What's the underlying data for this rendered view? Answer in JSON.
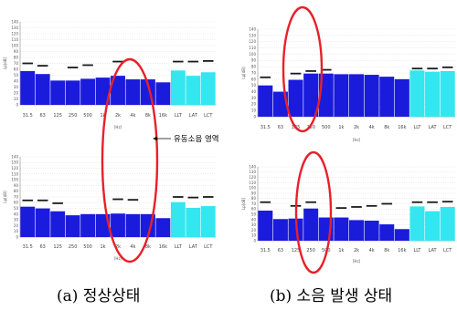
{
  "chart_data": [
    {
      "type": "bar",
      "panel": "a-top",
      "categories": [
        "31.5",
        "63",
        "125",
        "250",
        "500",
        "1k",
        "2k",
        "4k",
        "8k",
        "16k",
        "LLT",
        "LAT",
        "LCT"
      ],
      "values": [
        57,
        52,
        41,
        41,
        44,
        46,
        49,
        43,
        43,
        38,
        58,
        49,
        55
      ],
      "limits": [
        70,
        66,
        0,
        63,
        67,
        0,
        73,
        0,
        0,
        0,
        73,
        73,
        74
      ],
      "colors": [
        "#1b1bdc",
        "#1b1bdc",
        "#1b1bdc",
        "#1b1bdc",
        "#1b1bdc",
        "#1b1bdc",
        "#1b1bdc",
        "#1b1bdc",
        "#1b1bdc",
        "#1b1bdc",
        "#33e6f0",
        "#33e6f0",
        "#33e6f0"
      ],
      "yticks": [
        "140",
        "130",
        "120",
        "110",
        "100",
        "90",
        "80",
        "70",
        "60",
        "50",
        "40",
        "30",
        "20",
        "10",
        "0"
      ],
      "ylabel": "Lp[dB]",
      "xlabel": "[Hz]",
      "ylim": [
        0,
        140
      ],
      "grid": true
    },
    {
      "type": "bar",
      "panel": "a-bottom",
      "categories": [
        "31.5",
        "63",
        "125",
        "250",
        "500",
        "1k",
        "2k",
        "4k",
        "8k",
        "16k",
        "LLT",
        "LAT",
        "LCT"
      ],
      "values": [
        53,
        50,
        45,
        38,
        40,
        40,
        41,
        40,
        40,
        33,
        61,
        51,
        54
      ],
      "limits": [
        64,
        64,
        59,
        0,
        0,
        0,
        66,
        65,
        0,
        0,
        70,
        69,
        70
      ],
      "colors": [
        "#1b1bdc",
        "#1b1bdc",
        "#1b1bdc",
        "#1b1bdc",
        "#1b1bdc",
        "#1b1bdc",
        "#1b1bdc",
        "#1b1bdc",
        "#1b1bdc",
        "#1b1bdc",
        "#33e6f0",
        "#33e6f0",
        "#33e6f0"
      ],
      "yticks": [
        "140",
        "130",
        "120",
        "110",
        "100",
        "90",
        "80",
        "70",
        "60",
        "50",
        "40",
        "30",
        "20",
        "10",
        "0"
      ],
      "ylabel": "Lp[dB]",
      "xlabel": "[Hz]",
      "ylim": [
        0,
        140
      ],
      "grid": true
    },
    {
      "type": "bar",
      "panel": "b-top",
      "categories": [
        "31.5",
        "63",
        "125",
        "250",
        "500",
        "1k",
        "2k",
        "4k",
        "8k",
        "16k",
        "LLT",
        "LAT",
        "LCT"
      ],
      "values": [
        50,
        40,
        59,
        69,
        69,
        68,
        68,
        67,
        64,
        60,
        74,
        72,
        73
      ],
      "limits": [
        63,
        0,
        69,
        73,
        75,
        0,
        0,
        0,
        0,
        0,
        77,
        77,
        79
      ],
      "colors": [
        "#1b1bdc",
        "#1b1bdc",
        "#1b1bdc",
        "#1b1bdc",
        "#1b1bdc",
        "#1b1bdc",
        "#1b1bdc",
        "#1b1bdc",
        "#1b1bdc",
        "#1b1bdc",
        "#33e6f0",
        "#33e6f0",
        "#33e6f0"
      ],
      "yticks": [
        "140",
        "130",
        "120",
        "110",
        "100",
        "90",
        "80",
        "70",
        "60",
        "50",
        "40",
        "30",
        "20",
        "10",
        "0"
      ],
      "ylabel": "Lp[dB]",
      "xlabel": "[Hz]",
      "ylim": [
        0,
        140
      ],
      "grid": true
    },
    {
      "type": "bar",
      "panel": "b-bottom",
      "categories": [
        "31.5",
        "63",
        "125",
        "250",
        "500",
        "1k",
        "2k",
        "4k",
        "8k",
        "16k",
        "LLT",
        "LAT",
        "LCT"
      ],
      "values": [
        57,
        41,
        42,
        61,
        44,
        44,
        39,
        38,
        31,
        22,
        65,
        56,
        64
      ],
      "limits": [
        73,
        0,
        66,
        73,
        0,
        62,
        64,
        66,
        70,
        0,
        73,
        73,
        74
      ],
      "colors": [
        "#1b1bdc",
        "#1b1bdc",
        "#1b1bdc",
        "#1b1bdc",
        "#1b1bdc",
        "#1b1bdc",
        "#1b1bdc",
        "#1b1bdc",
        "#1b1bdc",
        "#1b1bdc",
        "#33e6f0",
        "#33e6f0",
        "#33e6f0"
      ],
      "yticks": [
        "140",
        "130",
        "120",
        "110",
        "100",
        "90",
        "80",
        "70",
        "60",
        "50",
        "40",
        "30",
        "20",
        "10",
        "0"
      ],
      "ylabel": "Lp[dB]",
      "xlabel": "[Hz]",
      "ylim": [
        0,
        140
      ],
      "grid": true
    }
  ],
  "annotation": "유동소음 영역",
  "captions": {
    "a": "(a)  정상상태",
    "b": "(b)  소음  발생  상태"
  },
  "colors": {
    "bar": "#1b1bdc",
    "total_bar": "#33e6f0",
    "limit_mark": "#1a1a1a",
    "ellipse": "#e8202a"
  }
}
